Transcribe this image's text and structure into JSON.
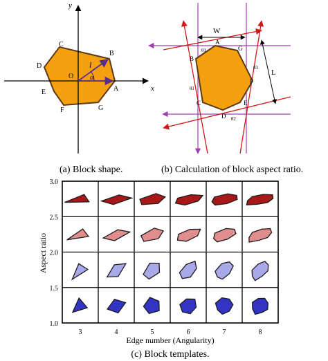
{
  "panel_a": {
    "axis_x": "x",
    "axis_y": "y",
    "origin": "O",
    "vertex_labels": [
      "A",
      "B",
      "C",
      "D",
      "E",
      "F",
      "G"
    ],
    "length_label": "l",
    "angle_label": "α",
    "caption": "(a) Block shape."
  },
  "panel_b": {
    "width_label": "W",
    "length_label": "L",
    "vertex_labels": [
      "A",
      "B",
      "C",
      "D",
      "E",
      "F",
      "G"
    ],
    "theta_labels": [
      "θ1",
      "θ3",
      "θ1",
      "θ2"
    ],
    "caption": "(b) Calculation of block aspect ratio."
  },
  "panel_c": {
    "ylabel": "Aspect ratio",
    "xlabel": "Edge number (Angularity)",
    "y_ticks": [
      "3.0",
      "2.5",
      "2.0",
      "1.5",
      "1.0"
    ],
    "x_ticks": [
      "3",
      "4",
      "5",
      "6",
      "7",
      "8"
    ],
    "row_colors": [
      "#a81818",
      "#df8d8d",
      "#a9a9e9",
      "#3434c4"
    ],
    "caption": "(c) Block templates."
  }
}
